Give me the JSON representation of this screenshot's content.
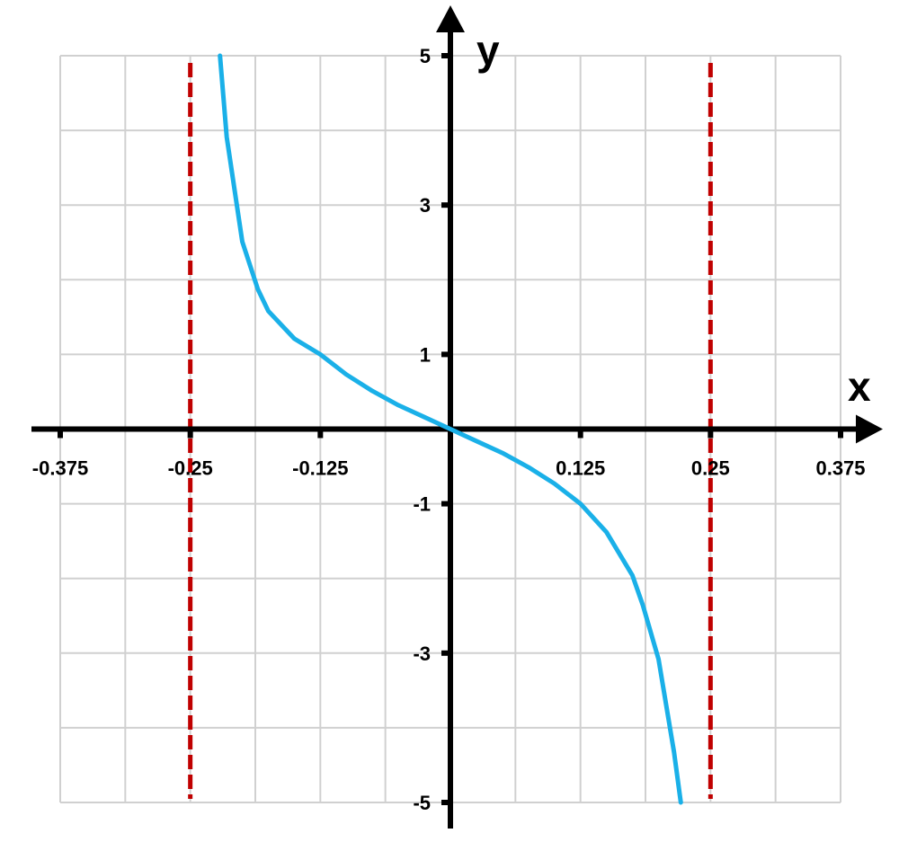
{
  "chart_data": {
    "type": "line",
    "title": "",
    "xlabel": "x",
    "ylabel": "y",
    "xlim": [
      -0.375,
      0.375
    ],
    "ylim": [
      -5,
      5
    ],
    "x_ticks": [
      -0.375,
      -0.25,
      -0.125,
      0.125,
      0.25,
      0.375
    ],
    "x_tick_labels": [
      "-0.375",
      "-0.25",
      "-0.125",
      "0.125",
      "0.25",
      "0.375"
    ],
    "y_ticks": [
      5,
      3,
      1,
      -1,
      -3,
      -5
    ],
    "y_tick_labels": [
      "5",
      "3",
      "1",
      "-1",
      "-3",
      "-5"
    ],
    "grid": true,
    "series": [
      {
        "color": "#1ab0e8",
        "x": [
          -0.2215,
          -0.215,
          -0.2,
          -0.185,
          -0.175,
          -0.15,
          -0.125,
          -0.1,
          -0.075,
          -0.05,
          -0.025,
          0,
          0.025,
          0.05,
          0.075,
          0.1,
          0.125,
          0.15,
          0.175,
          0.185,
          0.2,
          0.215,
          0.2215
        ],
        "y": [
          5,
          3.91,
          2.51,
          1.87,
          1.58,
          1.21,
          1.0,
          0.73,
          0.51,
          0.32,
          0.16,
          0,
          -0.16,
          -0.32,
          -0.51,
          -0.73,
          -1.0,
          -1.38,
          -1.96,
          -2.36,
          -3.08,
          -4.33,
          -5
        ]
      }
    ],
    "asymptotes": {
      "x": [
        -0.25,
        0.25
      ],
      "color": "#c00000",
      "style": "dashed"
    },
    "axis_color": "#000000",
    "grid_color": "#d0d0d0"
  }
}
